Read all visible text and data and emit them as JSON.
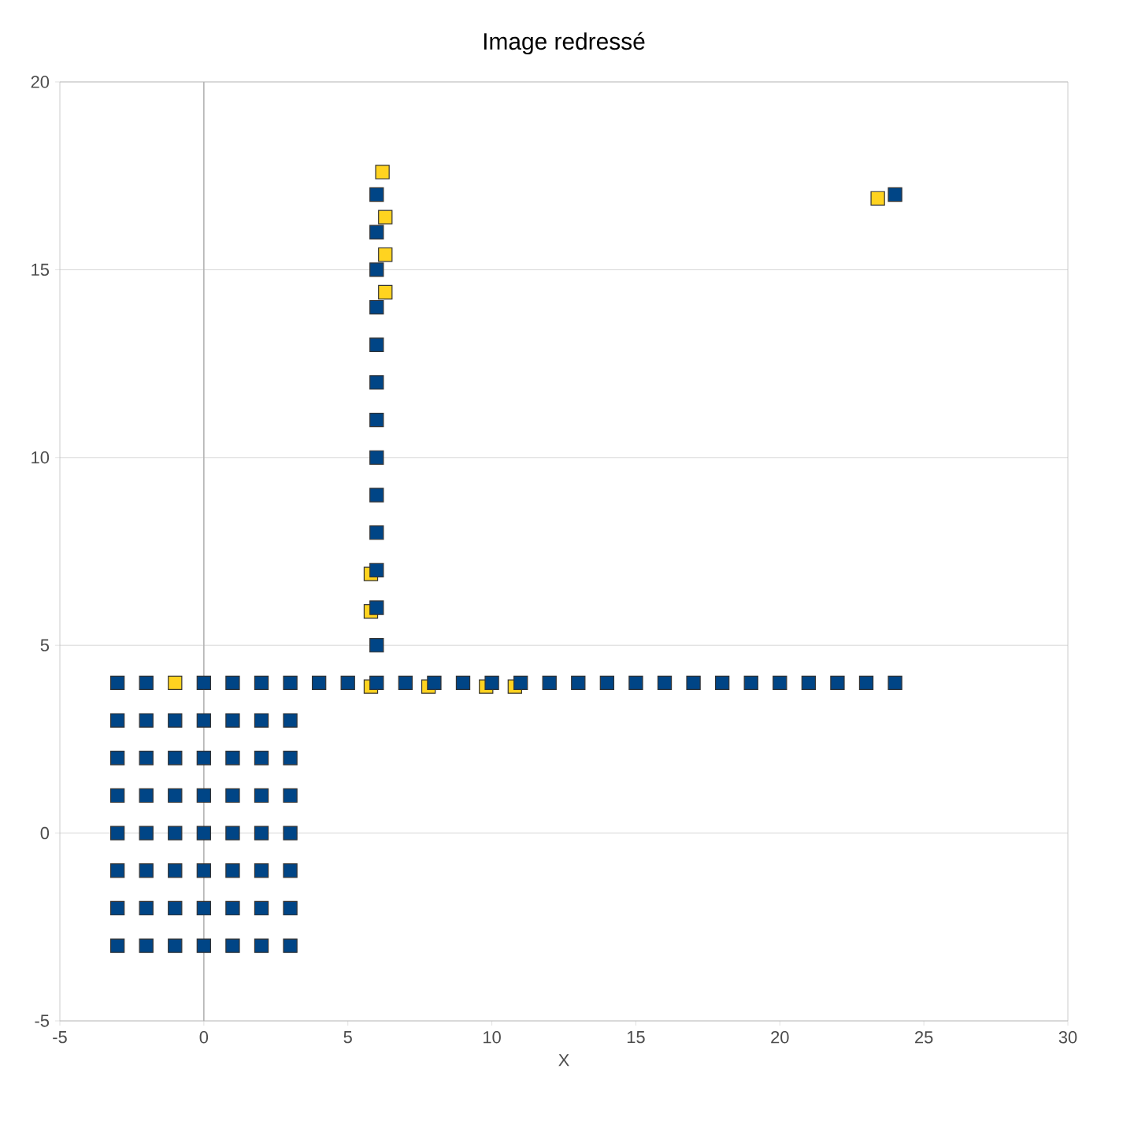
{
  "chart_data": {
    "type": "scatter",
    "title": "Image redressé",
    "xlabel": "X",
    "xlim": [
      -5,
      30
    ],
    "xticks": [
      -5,
      0,
      5,
      10,
      15,
      20,
      25,
      30
    ],
    "ylim": [
      -5,
      20
    ],
    "yticks": [
      -5,
      0,
      5,
      10,
      15,
      20
    ],
    "grid": "y",
    "marker": "square",
    "ref_lines": [
      {
        "axis": "x",
        "value": 0,
        "color": "#b3b3b3"
      }
    ],
    "series": [
      {
        "color": "#ffd320",
        "x": [
          -1,
          6.2,
          23.4,
          6.3,
          6.3,
          6.3,
          5.8,
          5.8,
          5.8,
          7.8,
          9.8,
          10.8
        ],
        "values": [
          4,
          17.6,
          16.9,
          16.4,
          15.4,
          14.4,
          6.9,
          5.9,
          3.9,
          3.9,
          3.9,
          3.9
        ]
      },
      {
        "color": "#004586",
        "x": [
          -3,
          -2,
          -1,
          0,
          1,
          2,
          3,
          -3,
          -2,
          -1,
          0,
          1,
          2,
          3,
          -3,
          -2,
          -1,
          0,
          1,
          2,
          3,
          -3,
          -2,
          -1,
          0,
          1,
          2,
          3,
          -3,
          -2,
          -1,
          0,
          1,
          2,
          3,
          -3,
          -2,
          -1,
          0,
          1,
          2,
          3,
          -3,
          -2,
          -1,
          0,
          1,
          2,
          3,
          -3,
          -2,
          0,
          1,
          2,
          3,
          4,
          5,
          6,
          7,
          8,
          9,
          10,
          11,
          12,
          13,
          14,
          15,
          16,
          17,
          18,
          19,
          20,
          21,
          22,
          23,
          24,
          6,
          6,
          6,
          6,
          6,
          6,
          6,
          6,
          6,
          6,
          6,
          6,
          6,
          24
        ],
        "values": [
          -3,
          -3,
          -3,
          -3,
          -3,
          -3,
          -3,
          -2,
          -2,
          -2,
          -2,
          -2,
          -2,
          -2,
          -1,
          -1,
          -1,
          -1,
          -1,
          -1,
          -1,
          0,
          0,
          0,
          0,
          0,
          0,
          0,
          1,
          1,
          1,
          1,
          1,
          1,
          1,
          2,
          2,
          2,
          2,
          2,
          2,
          2,
          3,
          3,
          3,
          3,
          3,
          3,
          3,
          4,
          4,
          4,
          4,
          4,
          4,
          4,
          4,
          4,
          4,
          4,
          4,
          4,
          4,
          4,
          4,
          4,
          4,
          4,
          4,
          4,
          4,
          4,
          4,
          4,
          4,
          4,
          5,
          6,
          7,
          8,
          9,
          10,
          11,
          12,
          13,
          14,
          15,
          16,
          17,
          17
        ]
      }
    ]
  }
}
